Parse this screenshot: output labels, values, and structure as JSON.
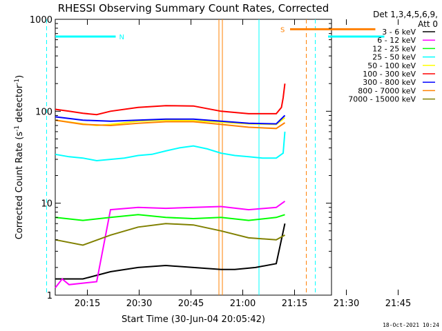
{
  "chart_data": {
    "type": "line",
    "title": "RHESSI Observing Summary Count Rates, Corrected",
    "xlabel": "Start Time (30-Jun-04 20:05:42)",
    "ylabel": "Corrected Count Rate (s",
    "ylabel_sup": "-1",
    "ylabel_tail": " detector",
    "ylabel_tail_sup": "-1",
    "ylabel_close": ")",
    "yscale": "log",
    "ylim": [
      1,
      1000
    ],
    "xlim_minutes": [
      20.0,
      100.0
    ],
    "x_ticks": [
      {
        "label": "20:15",
        "minute": 9.3
      },
      {
        "label": "20:30",
        "minute": 24.3
      },
      {
        "label": "20:45",
        "minute": 39.3
      },
      {
        "label": "21:00",
        "minute": 54.3
      },
      {
        "label": "21:15",
        "minute": 69.3
      },
      {
        "label": "21:30",
        "minute": 84.3
      },
      {
        "label": "21:45",
        "minute": 99.3
      }
    ],
    "y_ticks": [
      {
        "label": "1",
        "value": 1
      },
      {
        "label": "10",
        "value": 10
      },
      {
        "label": "100",
        "value": 100
      },
      {
        "label": "1000",
        "value": 1000
      }
    ],
    "legend_header": [
      "Det 1,3,4,5,6,9,",
      "Att 0"
    ],
    "series": [
      {
        "name": "3 - 6 keV",
        "color": "#000000",
        "x": [
          0,
          8,
          16,
          24,
          32,
          40,
          48,
          52,
          58,
          64,
          66.5
        ],
        "y": [
          1.5,
          1.5,
          1.8,
          2.0,
          2.1,
          2.0,
          1.9,
          1.9,
          2.0,
          2.2,
          6.0
        ]
      },
      {
        "name": "6 - 12 keV",
        "color": "#ff00ff",
        "x": [
          0,
          2,
          4,
          12,
          16,
          24,
          32,
          40,
          48,
          56,
          64,
          66.5
        ],
        "y": [
          1.2,
          1.5,
          1.3,
          1.4,
          8.5,
          9.0,
          8.8,
          9.0,
          9.2,
          8.5,
          9.0,
          10.5
        ]
      },
      {
        "name": "12 - 25 keV",
        "color": "#00ff00",
        "x": [
          0,
          8,
          16,
          24,
          32,
          40,
          48,
          56,
          64,
          66.5
        ],
        "y": [
          7.0,
          6.5,
          7.0,
          7.5,
          7.0,
          6.8,
          7.0,
          6.5,
          7.0,
          7.5
        ]
      },
      {
        "name": "25 - 50 keV",
        "color": "#00ffff",
        "x": [
          0,
          4,
          8,
          12,
          16,
          20,
          24,
          28,
          32,
          36,
          40,
          44,
          48,
          52,
          56,
          60,
          64,
          66,
          66.5
        ],
        "y": [
          34,
          32,
          31,
          29,
          30,
          31,
          33,
          34,
          37,
          40,
          42,
          39,
          35,
          33,
          32,
          31,
          31,
          35,
          60
        ]
      },
      {
        "name": "50 - 100 keV",
        "color": "#ffff00",
        "x": [
          0,
          8,
          12,
          16,
          24,
          32,
          40,
          48,
          56,
          64,
          66.5
        ],
        "y": [
          80,
          73,
          70,
          72,
          78,
          80,
          79,
          76,
          73,
          72,
          85
        ]
      },
      {
        "name": "100 - 300 keV",
        "color": "#ff0000",
        "x": [
          0,
          4,
          8,
          12,
          16,
          24,
          32,
          40,
          48,
          56,
          64,
          65.5,
          66,
          66.5
        ],
        "y": [
          105,
          100,
          95,
          92,
          100,
          110,
          115,
          114,
          100,
          94,
          94,
          110,
          140,
          200
        ]
      },
      {
        "name": "300 - 800 keV",
        "color": "#0000ff",
        "x": [
          0,
          8,
          16,
          24,
          32,
          40,
          48,
          56,
          64,
          66.5
        ],
        "y": [
          87,
          80,
          78,
          80,
          82,
          82,
          78,
          74,
          73,
          90
        ]
      },
      {
        "name": "800 - 7000 keV",
        "color": "#ff8000",
        "x": [
          0,
          8,
          16,
          24,
          32,
          40,
          48,
          56,
          64,
          66.5
        ],
        "y": [
          80,
          72,
          70,
          74,
          77,
          77,
          72,
          67,
          65,
          75
        ]
      },
      {
        "name": "7000 - 15000 keV",
        "color": "#808000",
        "x": [
          0,
          8,
          16,
          24,
          32,
          40,
          48,
          56,
          64,
          66.5
        ],
        "y": [
          4.0,
          3.5,
          4.5,
          5.5,
          6.0,
          5.8,
          5.0,
          4.2,
          4.0,
          4.5
        ]
      }
    ],
    "flag_bars": [
      {
        "label": "N",
        "color": "#00ffff",
        "y": 650,
        "x_start": 0,
        "x_end": 17.5
      },
      {
        "label": "S",
        "color": "#ff8000",
        "y": 780,
        "x_start": 68.0,
        "x_end": 92.7
      },
      {
        "label": "",
        "color": "#00ffff",
        "y": 650,
        "x_start": 79.0,
        "x_end": 95.3
      }
    ],
    "vertical_lines": [
      {
        "minute": 17.5,
        "color": "#00ffff",
        "dashed": true
      },
      {
        "minute": 67.4,
        "color": "#ff8000",
        "dashed": false
      },
      {
        "minute": 68.4,
        "color": "#ff8000",
        "dashed": false
      },
      {
        "minute": 79.0,
        "color": "#00ffff",
        "dashed": false
      },
      {
        "minute": 92.7,
        "color": "#ff8000",
        "dashed": true
      },
      {
        "minute": 95.3,
        "color": "#00ffff",
        "dashed": true
      }
    ],
    "grid": false,
    "legend_position": "right"
  },
  "footer": {
    "stamp": "18-Oct-2021 10:24"
  }
}
